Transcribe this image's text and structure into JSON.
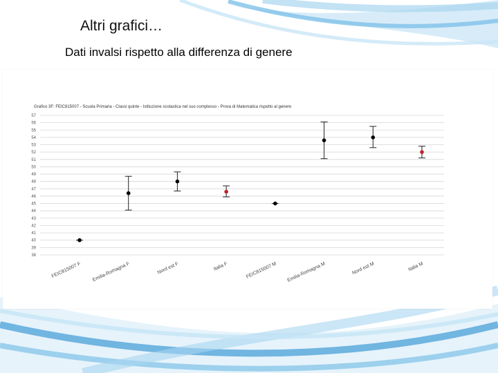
{
  "slide": {
    "title": "Altri grafici…",
    "subtitle": "Dati invalsi rispetto alla differenza di genere"
  },
  "colors": {
    "accent_blue": "#5aa9dc",
    "light_blue": "#bfe0f3",
    "point_black": "#000000",
    "point_red": "#c0202a",
    "grid": "#d6d6d6"
  },
  "chart_data": {
    "type": "scatter",
    "title": "Grafico 3F: FEIC815007 - Scuola Primaria - Classi quinte - Istituzione scolastica nel suo complesso - Prova di Matematica rispetto al genere",
    "y_ticks": [
      57,
      56,
      55,
      54,
      53,
      52,
      51,
      50,
      49,
      48,
      47,
      46,
      45,
      44,
      43,
      42,
      41,
      40,
      39,
      38
    ],
    "ylim": [
      38,
      57
    ],
    "grid": true,
    "categories": [
      "FEIC815007 F",
      "Emilia-Romagna F",
      "Nord est F",
      "Italia F",
      "FEIC815007 M",
      "Emilia-Romagna M",
      "Nord est M",
      "Italia M"
    ],
    "values": [
      40.0,
      46.4,
      48.0,
      46.6,
      45.0,
      53.6,
      54.0,
      52.0
    ],
    "error_low": [
      40.0,
      44.1,
      46.7,
      45.9,
      45.0,
      51.1,
      52.6,
      51.2
    ],
    "error_high": [
      40.0,
      48.7,
      49.3,
      47.4,
      45.0,
      56.1,
      55.5,
      52.8
    ],
    "point_colors": [
      "#000000",
      "#000000",
      "#000000",
      "#c0202a",
      "#000000",
      "#000000",
      "#000000",
      "#c0202a"
    ]
  }
}
